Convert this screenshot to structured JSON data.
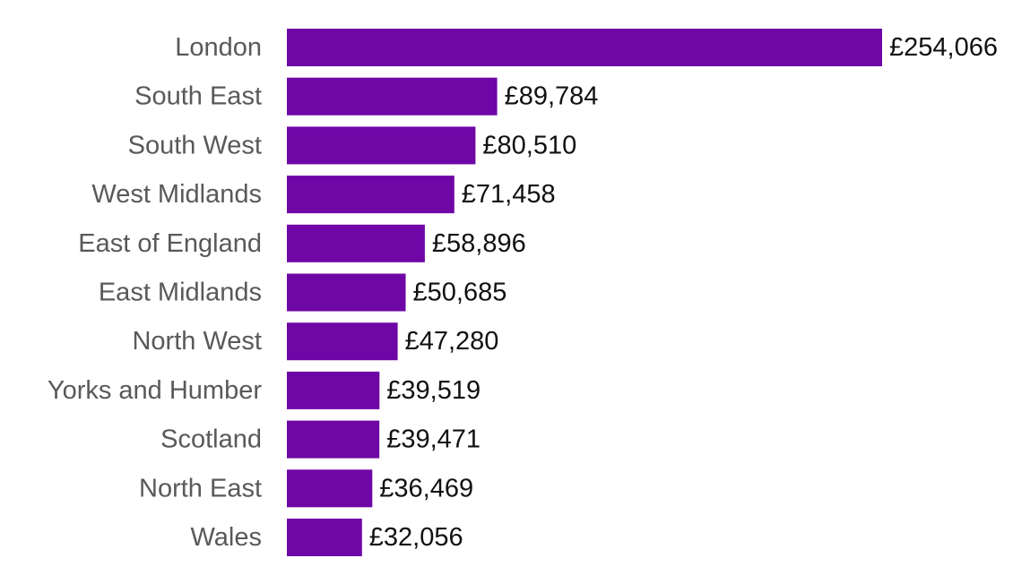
{
  "chart_data": {
    "type": "bar",
    "orientation": "horizontal",
    "title": "",
    "xlabel": "",
    "ylabel": "",
    "grid": false,
    "legend": "none",
    "xlim": [
      0,
      254066
    ],
    "bar_color": "#6f06a6",
    "categories": [
      "London",
      "South East",
      "South West",
      "West Midlands",
      "East of England",
      "East Midlands",
      "North West",
      "Yorks and Humber",
      "Scotland",
      "North East",
      "Wales"
    ],
    "values": [
      254066,
      89784,
      80510,
      71458,
      58896,
      50685,
      47280,
      39519,
      39471,
      36469,
      32056
    ],
    "value_labels": [
      "£254,066",
      "£89,784",
      "£80,510",
      "£71,458",
      "£58,896",
      "£50,685",
      "£47,280",
      "£39,519",
      "£39,471",
      "£36,469",
      "£32,056"
    ]
  }
}
